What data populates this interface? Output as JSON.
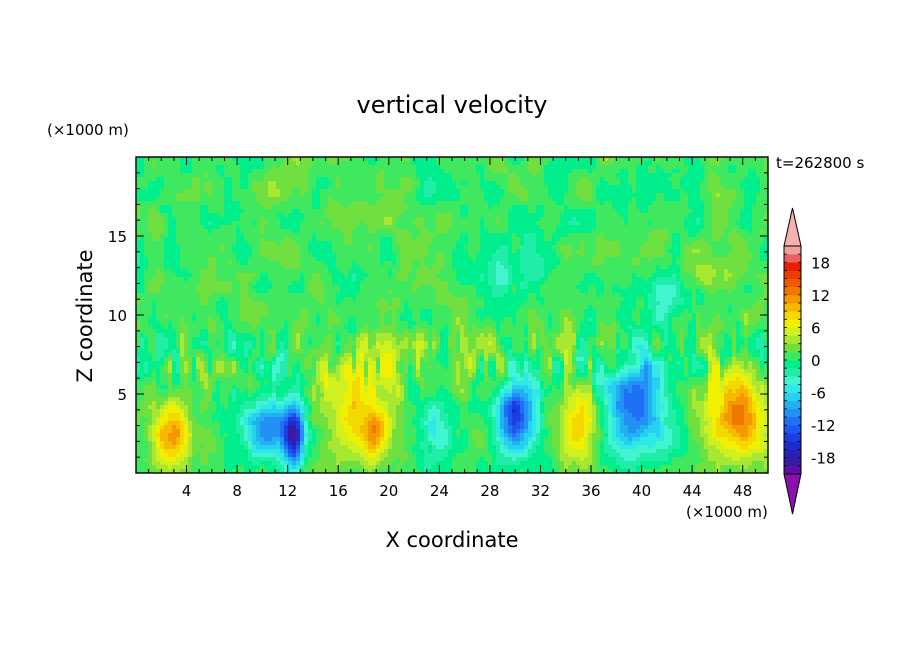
{
  "chart_data": {
    "type": "heatmap",
    "title": "vertical velocity",
    "xlabel": "X coordinate",
    "ylabel": "Z coordinate",
    "x_unit": "(×1000 m)",
    "y_unit": "(×1000 m)",
    "time_label": "t=262800 s",
    "xlim": [
      0,
      50
    ],
    "ylim": [
      0,
      20
    ],
    "x_ticks": [
      4,
      8,
      12,
      16,
      20,
      24,
      28,
      32,
      36,
      40,
      44,
      48
    ],
    "y_ticks": [
      5,
      10,
      15
    ],
    "colorbar": {
      "levels": [
        -21,
        -19.5,
        -18,
        -16.5,
        -15,
        -13.5,
        -12,
        -10.5,
        -9,
        -7.5,
        -6,
        -4.5,
        -3,
        -1.5,
        0,
        1.5,
        3,
        4.5,
        6,
        7.5,
        9,
        10.5,
        12,
        13.5,
        15,
        16.5,
        18,
        19.5,
        21
      ],
      "tick_labels": [
        "18",
        "12",
        "6",
        "0",
        "-6",
        "-12",
        "-18"
      ],
      "tick_values": [
        18,
        12,
        6,
        0,
        -6,
        -12,
        -18
      ],
      "colors": [
        "#5a10a8",
        "#3c1aa0",
        "#2a1fb8",
        "#1e2ccc",
        "#1a3ee0",
        "#1f56f0",
        "#2070f5",
        "#2390f5",
        "#22b0f0",
        "#25d0f0",
        "#30e8e8",
        "#40f5d0",
        "#20eea8",
        "#00ee8c",
        "#40e860",
        "#70e040",
        "#a8e830",
        "#d0f020",
        "#f0f000",
        "#f5d800",
        "#f8b800",
        "#f59800",
        "#f07800",
        "#ee5a00",
        "#ea3c00",
        "#e62000",
        "#ee6060",
        "#f0a0a0"
      ],
      "extend_min_color": "#8a10b0",
      "extend_max_color": "#f5b0b0"
    },
    "cells": [
      {
        "x": 2.8,
        "z": 2.4,
        "sx": 1.6,
        "sz": 2.0,
        "amp": 10.5
      },
      {
        "x": 10.5,
        "z": 3.0,
        "sx": 2.2,
        "sz": 2.0,
        "amp": -10.5
      },
      {
        "x": 12.5,
        "z": 2.2,
        "sx": 0.8,
        "sz": 1.8,
        "amp": -15.5
      },
      {
        "x": 17.5,
        "z": 4.2,
        "sx": 3.0,
        "sz": 3.6,
        "amp": 7.0
      },
      {
        "x": 19.0,
        "z": 2.7,
        "sx": 1.0,
        "sz": 1.5,
        "amp": 6.5
      },
      {
        "x": 23.5,
        "z": 3.0,
        "sx": 1.3,
        "sz": 2.0,
        "amp": -5.5
      },
      {
        "x": 30.0,
        "z": 3.5,
        "sx": 1.5,
        "sz": 2.2,
        "amp": -15.0
      },
      {
        "x": 35.0,
        "z": 3.0,
        "sx": 1.5,
        "sz": 2.6,
        "amp": 8.5
      },
      {
        "x": 39.5,
        "z": 4.2,
        "sx": 2.4,
        "sz": 3.0,
        "amp": -13.5
      },
      {
        "x": 47.5,
        "z": 3.6,
        "sx": 2.6,
        "sz": 2.8,
        "amp": 11.5
      },
      {
        "x": 10.5,
        "z": 18.0,
        "sx": 1.2,
        "sz": 1.2,
        "amp": 3.5
      },
      {
        "x": 45.0,
        "z": 12.5,
        "sx": 1.5,
        "sz": 1.0,
        "amp": 3.5
      },
      {
        "x": 30.0,
        "z": 13.0,
        "sx": 4.0,
        "sz": 2.0,
        "amp": -3.0
      },
      {
        "x": 42.0,
        "z": 11.0,
        "sx": 3.0,
        "sz": 2.0,
        "amp": -3.5
      }
    ]
  }
}
